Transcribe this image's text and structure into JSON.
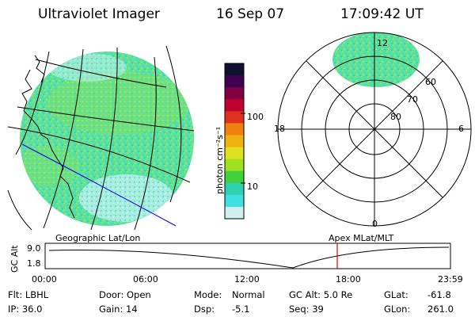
{
  "header": {
    "instrument": "Ultraviolet Imager",
    "date": "16 Sep 07",
    "time": "17:09:42 UT"
  },
  "colorbar": {
    "unit_label": "photon cm⁻²s⁻¹",
    "ticks": [
      "100",
      "10"
    ],
    "colors": [
      "#101030",
      "#400050",
      "#800040",
      "#c00030",
      "#e03020",
      "#f08010",
      "#f0b010",
      "#e0e020",
      "#a0e020",
      "#40d040",
      "#30d0b0",
      "#40e0e0",
      "#d0f0f0"
    ]
  },
  "polar_plot": {
    "hour_labels": {
      "top": "12",
      "left": "18",
      "right": "6",
      "bottom": "0"
    },
    "lat_labels": [
      "60",
      "70",
      "80"
    ]
  },
  "map_labels": {
    "left": "Geographic Lat/Lon",
    "right": "Apex  MLat/MLT"
  },
  "altitude_plot": {
    "axis_label": "GC Alt",
    "y_ticks": [
      "9.0",
      "1.8"
    ],
    "x_ticks": [
      "00:00",
      "06:00",
      "12:00",
      "18:00",
      "23:59"
    ]
  },
  "footer": {
    "filter": "Flt: LBHL",
    "door": "Door: Open",
    "mode_label": "Mode:",
    "mode_value": "Normal",
    "gc_alt": "GC Alt: 5.0 Re",
    "glat_label": "GLat:",
    "glat_value": "-61.8",
    "ip": "IP: 36.0",
    "gain": "Gain: 14",
    "dsp_label": "Dsp:",
    "dsp_value": "-5.1",
    "seq": "Seq: 39",
    "glon_label": "GLon:",
    "glon_value": "261.0"
  }
}
